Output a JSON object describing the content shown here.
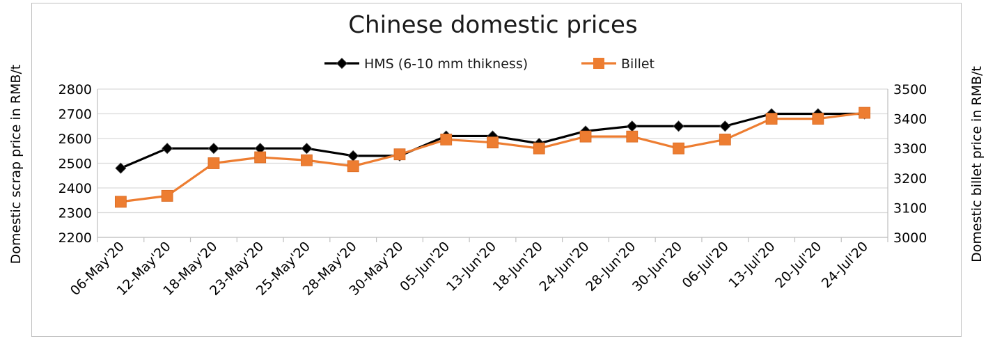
{
  "chart_data": {
    "type": "line",
    "title": "Chinese domestic prices",
    "ylabel_left": "Domestic scrap price in RMB/t",
    "ylabel_right": "Domestic billet price in RMB/t",
    "categories": [
      "06-May'20",
      "12-May'20",
      "18-May'20",
      "23-May'20",
      "25-May'20",
      "28-May'20",
      "30-May'20",
      "05-Jun'20",
      "13-Jun'20",
      "18-Jun'20",
      "24-Jun'20",
      "28-Jun'20",
      "30-Jun'20",
      "06-Jul'20",
      "13-Jul'20",
      "20-Jul'20",
      "24-Jul'20"
    ],
    "ylim_left": [
      2200,
      2800
    ],
    "yticks_left": [
      2200,
      2300,
      2400,
      2500,
      2600,
      2700,
      2800
    ],
    "ylim_right": [
      3000,
      3500
    ],
    "yticks_right": [
      3000,
      3100,
      3200,
      3300,
      3400,
      3500
    ],
    "grid": true,
    "legend_position": "top",
    "series": [
      {
        "name": "HMS (6-10 mm thikness)",
        "axis": "left",
        "color": "#000000",
        "marker": "diamond",
        "values": [
          2480,
          2560,
          2560,
          2560,
          2560,
          2530,
          2530,
          2610,
          2610,
          2580,
          2630,
          2650,
          2650,
          2650,
          2700,
          2700,
          2700
        ]
      },
      {
        "name": "Billet",
        "axis": "right",
        "color": "#ed7d31",
        "marker": "square",
        "values": [
          3120,
          3140,
          3250,
          3270,
          3260,
          3240,
          3280,
          3330,
          3320,
          3300,
          3340,
          3340,
          3300,
          3330,
          3400,
          3400,
          3420
        ]
      }
    ]
  }
}
